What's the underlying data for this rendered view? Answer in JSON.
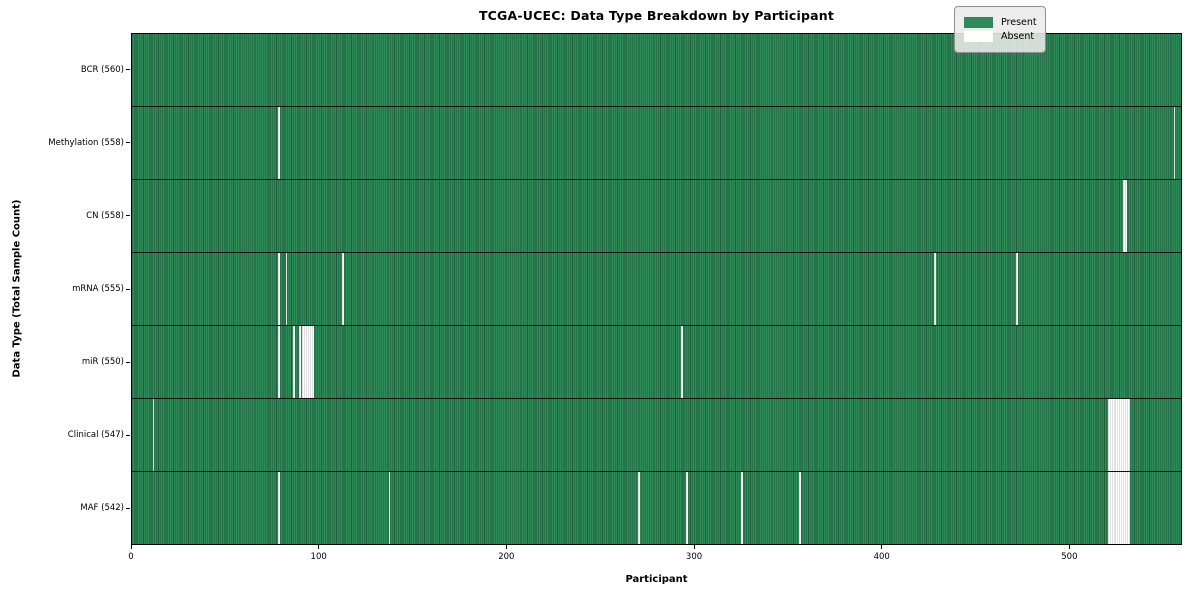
{
  "chart_data": {
    "type": "heatmap",
    "title": "TCGA-UCEC: Data Type Breakdown by Participant",
    "xlabel": "Participant",
    "ylabel": "Data Type (Total Sample Count)",
    "n_participants": 560,
    "x_ticks": [
      0,
      100,
      200,
      300,
      400,
      500
    ],
    "grid": false,
    "rows": [
      {
        "name": "bcr",
        "label": "BCR (560)",
        "present_count": 560,
        "absent_participants": []
      },
      {
        "name": "methylation",
        "label": "Methylation (558)",
        "present_count": 558,
        "absent_participants": [
          78,
          556
        ]
      },
      {
        "name": "cn",
        "label": "CN (558)",
        "present_count": 558,
        "absent_participants": [
          529,
          530
        ]
      },
      {
        "name": "mrna",
        "label": "mRNA (555)",
        "present_count": 555,
        "absent_participants": [
          78,
          82,
          112,
          428,
          472
        ]
      },
      {
        "name": "mir",
        "label": "miR (550)",
        "present_count": 550,
        "absent_participants": [
          78,
          86,
          89,
          91,
          92,
          93,
          94,
          95,
          96,
          293
        ]
      },
      {
        "name": "clinical",
        "label": "Clinical (547)",
        "present_count": 547,
        "absent_participants": [
          11,
          521,
          522,
          523,
          524,
          525,
          526,
          527,
          528,
          529,
          530,
          531,
          532
        ]
      },
      {
        "name": "maf",
        "label": "MAF (542)",
        "present_count": 542,
        "absent_participants": [
          78,
          137,
          270,
          296,
          325,
          356,
          521,
          522,
          523,
          524,
          525,
          526,
          527,
          528,
          529,
          530,
          531,
          532
        ]
      }
    ],
    "legend": {
      "position": "upper right",
      "entries": [
        {
          "label": "Present",
          "color": "#2e8b57"
        },
        {
          "label": "Absent",
          "color": "#ffffff"
        }
      ]
    },
    "colors": {
      "present": "#2e8b57",
      "present_edge": "#1e5e3c",
      "absent": "#ffffff",
      "absent_edge": "#c0c0c0",
      "row_separator": "#101010"
    }
  }
}
